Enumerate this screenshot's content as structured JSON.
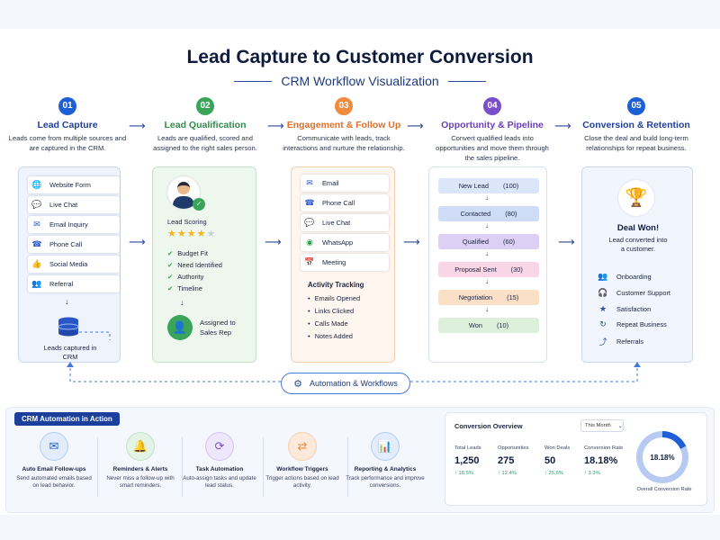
{
  "header": {
    "title": "Lead Capture to Customer Conversion",
    "subtitle": "CRM Workflow Visualization"
  },
  "steps": [
    {
      "num": "01",
      "title": "Lead Capture",
      "desc": "Leads come from multiple sources and are captured in the CRM.",
      "color": "#1f5fd6"
    },
    {
      "num": "02",
      "title": "Lead Qualification",
      "desc": "Leads are qualified, scored and assigned to the right sales person.",
      "color": "#3aa55a"
    },
    {
      "num": "03",
      "title": "Engagement & Follow Up",
      "desc": "Communicate with leads, track interactions and nurture the relationship.",
      "color": "#f08a3c"
    },
    {
      "num": "04",
      "title": "Opportunity & Pipeline",
      "desc": "Convert qualified leads into opportunities and move them through the sales pipeline.",
      "color": "#7b4fc9"
    },
    {
      "num": "05",
      "title": "Conversion & Retention",
      "desc": "Close the deal and build long-term relationships for repeat business.",
      "color": "#1f5fd6"
    }
  ],
  "capture": {
    "sources": [
      {
        "label": "Website Form",
        "icon": "globe-icon"
      },
      {
        "label": "Live Chat",
        "icon": "chat-icon"
      },
      {
        "label": "Email Inquiry",
        "icon": "mail-icon"
      },
      {
        "label": "Phone Call",
        "icon": "phone-icon"
      },
      {
        "label": "Social Media",
        "icon": "thumbs-up-icon"
      },
      {
        "label": "Referral",
        "icon": "users-icon"
      }
    ],
    "captured_label": "Leads captured in CRM"
  },
  "qualification": {
    "scoring_label": "Lead Scoring",
    "stars_filled": 4,
    "stars_total": 5,
    "criteria": [
      "Budget Fit",
      "Need Identified",
      "Authority",
      "Timeline"
    ],
    "assigned_label": "Assigned to Sales Rep"
  },
  "engagement": {
    "channels": [
      {
        "label": "Email",
        "icon": "mail-icon"
      },
      {
        "label": "Phone Call",
        "icon": "phone-icon"
      },
      {
        "label": "Live Chat",
        "icon": "chat-icon"
      },
      {
        "label": "WhatsApp",
        "icon": "whatsapp-icon"
      },
      {
        "label": "Meeting",
        "icon": "calendar-icon"
      }
    ],
    "activity_title": "Activity Tracking",
    "activities": [
      "Emails Opened",
      "Links Clicked",
      "Calls Made",
      "Notes Added"
    ]
  },
  "pipeline": {
    "stages": [
      {
        "name": "New Lead",
        "count": "(100)",
        "color": "#dbe6fb"
      },
      {
        "name": "Contacted",
        "count": "(80)",
        "color": "#cfdcf8"
      },
      {
        "name": "Qualified",
        "count": "(60)",
        "color": "#ddd0f5"
      },
      {
        "name": "Proposal Sent",
        "count": "(30)",
        "color": "#f8d6e6"
      },
      {
        "name": "Negotiation",
        "count": "(15)",
        "color": "#fbe0c8"
      },
      {
        "name": "Won",
        "count": "(10)",
        "color": "#dcf0dc"
      }
    ]
  },
  "retention": {
    "deal_title": "Deal Won!",
    "deal_desc": "Lead converted into a customer.",
    "items": [
      {
        "label": "Onboarding",
        "icon": "people-icon"
      },
      {
        "label": "Customer Support",
        "icon": "headset-icon"
      },
      {
        "label": "Satisfaction",
        "icon": "star-icon"
      },
      {
        "label": "Repeat Business",
        "icon": "refresh-icon"
      },
      {
        "label": "Referrals",
        "icon": "share-icon"
      }
    ]
  },
  "automation_pill": "Automation & Workflows",
  "automation": {
    "title": "CRM Automation in Action",
    "features": [
      {
        "title": "Auto Email Follow-ups",
        "desc": "Send automated emails based on lead behavior.",
        "icon": "mail-icon",
        "color": "#1f5fd6"
      },
      {
        "title": "Reminders & Alerts",
        "desc": "Never miss a follow-up with smart reminders.",
        "icon": "bell-icon",
        "color": "#3aa55a"
      },
      {
        "title": "Task Automation",
        "desc": "Auto-assign tasks and update lead status.",
        "icon": "sync-icon",
        "color": "#7b4fc9"
      },
      {
        "title": "Workflow Triggers",
        "desc": "Trigger actions based on lead activity.",
        "icon": "workflow-icon",
        "color": "#f08a3c"
      },
      {
        "title": "Reporting & Analytics",
        "desc": "Track performance and improve conversions.",
        "icon": "bar-chart-icon",
        "color": "#1f5fd6"
      }
    ]
  },
  "overview": {
    "title": "Conversion Overview",
    "period": "This Month",
    "metrics": [
      {
        "label": "Total Leads",
        "value": "1,250",
        "change": "↑ 18.5%"
      },
      {
        "label": "Opportunities",
        "value": "275",
        "change": "↑ 12.4%"
      },
      {
        "label": "Won Deals",
        "value": "50",
        "change": "↑ 25.6%"
      },
      {
        "label": "Conversion Rate",
        "value": "18.18%",
        "change": "↑ 3.3%"
      }
    ],
    "donut_value": "18.18%",
    "donut_fraction": 0.1818,
    "donut_label": "Overall Conversion Rate"
  }
}
